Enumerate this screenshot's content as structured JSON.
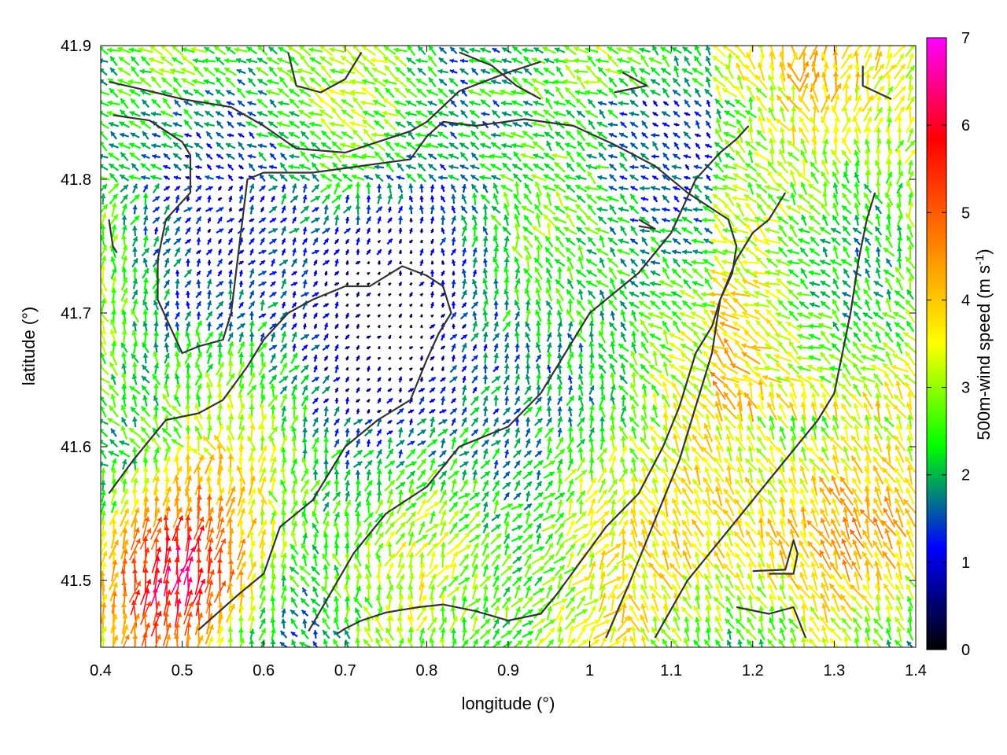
{
  "chart_data": {
    "type": "vector-field",
    "title": "",
    "xlabel": "longitude (°)",
    "ylabel": "latitude (°)",
    "xlim": [
      0.4,
      1.4
    ],
    "ylim": [
      41.45,
      41.9
    ],
    "xticks": [
      "0.4",
      "0.5",
      "0.6",
      "0.7",
      "0.8",
      "0.9",
      "1",
      "1.1",
      "1.2",
      "1.3",
      "1.4"
    ],
    "yticks": [
      "41.5",
      "41.6",
      "41.7",
      "41.8",
      "41.9"
    ],
    "grid": false,
    "colorbar": {
      "label_main": "500m-wind speed (m s",
      "label_sup": "-1",
      "label_end": ")",
      "range": [
        0,
        7
      ],
      "ticks": [
        "0",
        "1",
        "2",
        "3",
        "4",
        "5",
        "6",
        "7"
      ],
      "colors": [
        "#000000",
        "#0000ff",
        "#00ff00",
        "#ffff00",
        "#ff8000",
        "#ff0000",
        "#ff00ff"
      ]
    },
    "contours": [
      [
        [
          0.41,
          41.873
        ],
        [
          0.46,
          41.866
        ],
        [
          0.5,
          41.86
        ],
        [
          0.56,
          41.854
        ],
        [
          0.6,
          41.84
        ],
        [
          0.64,
          41.823
        ],
        [
          0.7,
          41.82
        ],
        [
          0.74,
          41.828
        ],
        [
          0.78,
          41.836
        ],
        [
          0.8,
          41.843
        ],
        [
          0.84,
          41.866
        ],
        [
          0.9,
          41.88
        ],
        [
          0.94,
          41.888
        ]
      ],
      [
        [
          0.415,
          41.848
        ],
        [
          0.46,
          41.844
        ],
        [
          0.5,
          41.828
        ],
        [
          0.51,
          41.818
        ],
        [
          0.51,
          41.79
        ],
        [
          0.48,
          41.77
        ],
        [
          0.47,
          41.74
        ],
        [
          0.47,
          41.71
        ],
        [
          0.5,
          41.67
        ],
        [
          0.52,
          41.675
        ],
        [
          0.55,
          41.68
        ],
        [
          0.56,
          41.7
        ],
        [
          0.57,
          41.75
        ],
        [
          0.58,
          41.8
        ],
        [
          0.6,
          41.805
        ],
        [
          0.66,
          41.805
        ],
        [
          0.72,
          41.81
        ],
        [
          0.78,
          41.815
        ],
        [
          0.8,
          41.832
        ],
        [
          0.82,
          41.843
        ],
        [
          0.86,
          41.84
        ],
        [
          0.92,
          41.845
        ],
        [
          0.98,
          41.84
        ],
        [
          1.03,
          41.826
        ],
        [
          1.08,
          41.81
        ],
        [
          1.12,
          41.79
        ],
        [
          1.17,
          41.77
        ],
        [
          1.18,
          41.75
        ],
        [
          1.175,
          41.73
        ],
        [
          1.16,
          41.71
        ],
        [
          1.15,
          41.69
        ],
        [
          1.13,
          41.67
        ],
        [
          1.11,
          41.63
        ],
        [
          1.09,
          41.6
        ],
        [
          1.06,
          41.565
        ],
        [
          1.02,
          41.54
        ],
        [
          0.99,
          41.515
        ],
        [
          0.96,
          41.49
        ],
        [
          0.94,
          41.475
        ],
        [
          0.9,
          41.47
        ],
        [
          0.86,
          41.477
        ],
        [
          0.82,
          41.482
        ],
        [
          0.79,
          41.48
        ],
        [
          0.75,
          41.476
        ],
        [
          0.72,
          41.47
        ],
        [
          0.7,
          41.464
        ],
        [
          0.69,
          41.46
        ]
      ],
      [
        [
          0.52,
          41.463
        ],
        [
          0.57,
          41.49
        ],
        [
          0.6,
          41.505
        ],
        [
          0.62,
          41.54
        ],
        [
          0.66,
          41.56
        ],
        [
          0.7,
          41.6
        ],
        [
          0.74,
          41.62
        ],
        [
          0.78,
          41.635
        ],
        [
          0.8,
          41.665
        ],
        [
          0.815,
          41.685
        ],
        [
          0.83,
          41.7
        ],
        [
          0.82,
          41.72
        ],
        [
          0.8,
          41.728
        ],
        [
          0.77,
          41.735
        ],
        [
          0.73,
          41.72
        ],
        [
          0.7,
          41.72
        ],
        [
          0.66,
          41.71
        ],
        [
          0.63,
          41.7
        ],
        [
          0.6,
          41.68
        ],
        [
          0.58,
          41.66
        ],
        [
          0.55,
          41.635
        ],
        [
          0.52,
          41.625
        ],
        [
          0.48,
          41.62
        ],
        [
          0.44,
          41.59
        ],
        [
          0.41,
          41.565
        ]
      ],
      [
        [
          0.41,
          41.77
        ],
        [
          0.415,
          41.75
        ],
        [
          0.42,
          41.745
        ]
      ],
      [
        [
          0.63,
          41.895
        ],
        [
          0.64,
          41.87
        ],
        [
          0.67,
          41.865
        ],
        [
          0.7,
          41.875
        ],
        [
          0.72,
          41.895
        ]
      ],
      [
        [
          0.84,
          41.895
        ],
        [
          0.88,
          41.885
        ],
        [
          0.91,
          41.87
        ],
        [
          0.94,
          41.86
        ]
      ],
      [
        [
          1.03,
          41.865
        ],
        [
          1.07,
          41.87
        ],
        [
          1.04,
          41.88
        ]
      ],
      [
        [
          1.06,
          41.77
        ],
        [
          1.08,
          41.763
        ],
        [
          1.06,
          41.765
        ]
      ],
      [
        [
          0.655,
          41.462
        ],
        [
          0.71,
          41.52
        ],
        [
          0.75,
          41.55
        ],
        [
          0.8,
          41.57
        ],
        [
          0.84,
          41.6
        ],
        [
          0.9,
          41.615
        ],
        [
          0.94,
          41.64
        ],
        [
          0.97,
          41.67
        ],
        [
          1.0,
          41.7
        ],
        [
          1.04,
          41.72
        ],
        [
          1.06,
          41.73
        ],
        [
          1.1,
          41.76
        ],
        [
          1.13,
          41.8
        ],
        [
          1.16,
          41.82
        ],
        [
          1.18,
          41.83
        ],
        [
          1.195,
          41.84
        ]
      ],
      [
        [
          1.02,
          41.457
        ],
        [
          1.05,
          41.5
        ],
        [
          1.07,
          41.53
        ],
        [
          1.09,
          41.56
        ],
        [
          1.11,
          41.59
        ],
        [
          1.13,
          41.63
        ],
        [
          1.15,
          41.67
        ],
        [
          1.16,
          41.71
        ],
        [
          1.18,
          41.74
        ],
        [
          1.2,
          41.76
        ],
        [
          1.22,
          41.77
        ],
        [
          1.24,
          41.79
        ]
      ],
      [
        [
          1.08,
          41.457
        ],
        [
          1.12,
          41.5
        ],
        [
          1.16,
          41.53
        ],
        [
          1.2,
          41.56
        ],
        [
          1.24,
          41.59
        ],
        [
          1.28,
          41.62
        ],
        [
          1.3,
          41.64
        ],
        [
          1.31,
          41.67
        ],
        [
          1.32,
          41.7
        ],
        [
          1.33,
          41.74
        ],
        [
          1.34,
          41.77
        ],
        [
          1.35,
          41.79
        ]
      ],
      [
        [
          1.2,
          41.507
        ],
        [
          1.24,
          41.508
        ],
        [
          1.25,
          41.53
        ],
        [
          1.255,
          41.52
        ],
        [
          1.25,
          41.505
        ],
        [
          1.22,
          41.505
        ]
      ],
      [
        [
          1.18,
          41.48
        ],
        [
          1.22,
          41.475
        ],
        [
          1.25,
          41.48
        ],
        [
          1.265,
          41.457
        ]
      ],
      [
        [
          1.335,
          41.885
        ],
        [
          1.335,
          41.87
        ],
        [
          1.37,
          41.86
        ]
      ]
    ]
  }
}
